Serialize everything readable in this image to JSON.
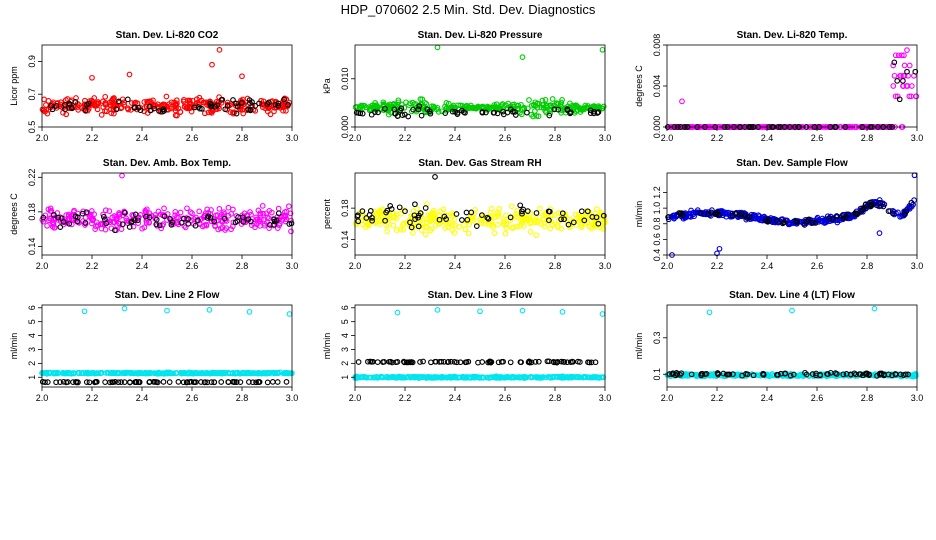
{
  "figure_title": "HDP_070602  2.5 Min. Std. Dev. Diagnostics",
  "chart_data": [
    {
      "type": "scatter",
      "title": "Stan. Dev. Li-820 CO2",
      "ylabel": "Licor ppm",
      "xlim": [
        2.0,
        3.0
      ],
      "ylim": [
        0.5,
        1.0
      ],
      "xticks": [
        "2.0",
        "2.2",
        "2.4",
        "2.6",
        "2.8",
        "3.0"
      ],
      "yticks": [
        "0.5",
        "0.7",
        "0.9"
      ],
      "series": [
        {
          "name": "red",
          "color": "#ff0000",
          "pattern": "noisy",
          "n": 300,
          "base": 0.63,
          "spread": 0.07,
          "sparse": [
            [
              2.2,
              0.8
            ],
            [
              2.35,
              0.82
            ],
            [
              2.68,
              0.88
            ],
            [
              2.71,
              0.97
            ],
            [
              2.8,
              0.81
            ]
          ]
        },
        {
          "name": "black",
          "color": "#000000",
          "pattern": "noisy",
          "n": 60,
          "base": 0.63,
          "spread": 0.06
        }
      ]
    },
    {
      "type": "scatter",
      "title": "Stan. Dev. Li-820 Pressure",
      "ylabel": "kPa",
      "xlim": [
        2.0,
        3.0
      ],
      "ylim": [
        0.0,
        0.017
      ],
      "xticks": [
        "2.0",
        "2.2",
        "2.4",
        "2.6",
        "2.8",
        "3.0"
      ],
      "yticks": [
        "0.000",
        "0.010"
      ],
      "series": [
        {
          "name": "green",
          "color": "#00cc00",
          "pattern": "band",
          "n": 320,
          "base": 0.004,
          "spread": 0.0025,
          "sparse": [
            [
              2.33,
              0.0165
            ],
            [
              2.67,
              0.0145
            ],
            [
              2.99,
              0.016
            ]
          ]
        },
        {
          "name": "black",
          "color": "#000000",
          "pattern": "band",
          "n": 60,
          "base": 0.003,
          "spread": 0.002
        }
      ]
    },
    {
      "type": "scatter",
      "title": "Stan. Dev. Li-820 Temp.",
      "ylabel": "degrees C",
      "xlim": [
        2.0,
        3.0
      ],
      "ylim": [
        0.0,
        0.008
      ],
      "xticks": [
        "2.0",
        "2.2",
        "2.4",
        "2.6",
        "2.8",
        "3.0"
      ],
      "yticks": [
        "0.000",
        "0.004",
        "0.008"
      ],
      "series": [
        {
          "name": "magenta",
          "color": "#ff00ff",
          "pattern": "steps",
          "n": 260,
          "base": 0.0,
          "spread": 0.0,
          "sparse": [
            [
              2.06,
              0.0025
            ],
            [
              2.95,
              0.0082
            ],
            [
              2.96,
              0.0075
            ]
          ]
        },
        {
          "name": "black",
          "color": "#000000",
          "pattern": "steps",
          "n": 60,
          "base": 0.0,
          "spread": 0.0
        }
      ]
    },
    {
      "type": "scatter",
      "title": "Stan. Dev. Amb. Box Temp.",
      "ylabel": "degrees C",
      "xlim": [
        2.0,
        3.0
      ],
      "ylim": [
        0.13,
        0.225
      ],
      "xticks": [
        "2.0",
        "2.2",
        "2.4",
        "2.6",
        "2.8",
        "3.0"
      ],
      "yticks": [
        "0.14",
        "0.18",
        "0.22"
      ],
      "series": [
        {
          "name": "magenta",
          "color": "#ff00ff",
          "pattern": "noisy",
          "n": 300,
          "base": 0.172,
          "spread": 0.018,
          "sparse": [
            [
              2.32,
              0.222
            ]
          ]
        },
        {
          "name": "black",
          "color": "#000000",
          "pattern": "noisy",
          "n": 60,
          "base": 0.17,
          "spread": 0.016
        }
      ]
    },
    {
      "type": "scatter",
      "title": "Stan. Dev. Gas Stream RH",
      "ylabel": "percent",
      "xlim": [
        2.0,
        3.0
      ],
      "ylim": [
        0.12,
        0.225
      ],
      "xticks": [
        "2.0",
        "2.2",
        "2.4",
        "2.6",
        "2.8",
        "3.0"
      ],
      "yticks": [
        "0.14",
        "0.18"
      ],
      "series": [
        {
          "name": "yellow",
          "color": "#ffff00",
          "pattern": "noisy",
          "n": 300,
          "base": 0.165,
          "spread": 0.022
        },
        {
          "name": "black",
          "color": "#000000",
          "pattern": "noisy",
          "n": 60,
          "base": 0.17,
          "spread": 0.02,
          "sparse": [
            [
              2.32,
              0.22
            ]
          ]
        }
      ]
    },
    {
      "type": "scatter",
      "title": "Stan. Dev. Sample Flow",
      "ylabel": "ml/min",
      "xlim": [
        2.0,
        3.0
      ],
      "ylim": [
        0.4,
        1.45
      ],
      "xticks": [
        "2.0",
        "2.2",
        "2.4",
        "2.6",
        "2.8",
        "3.0"
      ],
      "yticks": [
        "0.4",
        "0.6",
        "0.8",
        "1.0",
        "1.2"
      ],
      "series": [
        {
          "name": "blue",
          "color": "#0000dd",
          "pattern": "wave",
          "n": 360,
          "base": 0.88,
          "spread": 0.06,
          "sparse": [
            [
              2.02,
              0.4
            ],
            [
              2.2,
              0.42
            ],
            [
              2.21,
              0.48
            ],
            [
              2.85,
              0.68
            ],
            [
              2.99,
              1.42
            ]
          ]
        },
        {
          "name": "black",
          "color": "#000000",
          "pattern": "wave",
          "n": 60,
          "base": 0.88,
          "spread": 0.05
        }
      ]
    },
    {
      "type": "scatter",
      "title": "Stan. Dev. Line 2 Flow",
      "ylabel": "ml/min",
      "xlim": [
        2.0,
        3.0
      ],
      "ylim": [
        0.3,
        6.2
      ],
      "xticks": [
        "2.0",
        "2.2",
        "2.4",
        "2.6",
        "2.8",
        "3.0"
      ],
      "yticks": [
        "1",
        "2",
        "3",
        "4",
        "5",
        "6"
      ],
      "series": [
        {
          "name": "cyan",
          "color": "#00e5ee",
          "pattern": "flat",
          "n": 340,
          "base": 1.3,
          "spread": 0.06,
          "sparse": [
            [
              2.17,
              5.75
            ],
            [
              2.33,
              5.95
            ],
            [
              2.5,
              5.8
            ],
            [
              2.67,
              5.85
            ],
            [
              2.83,
              5.7
            ],
            [
              2.99,
              5.55
            ]
          ]
        },
        {
          "name": "black",
          "color": "#000000",
          "pattern": "flat",
          "n": 80,
          "base": 0.65,
          "spread": 0.04
        }
      ]
    },
    {
      "type": "scatter",
      "title": "Stan. Dev. Line 3 Flow",
      "ylabel": "ml/min",
      "xlim": [
        2.0,
        3.0
      ],
      "ylim": [
        0.3,
        6.2
      ],
      "xticks": [
        "2.0",
        "2.2",
        "2.4",
        "2.6",
        "2.8",
        "3.0"
      ],
      "yticks": [
        "1",
        "2",
        "3",
        "4",
        "5",
        "6"
      ],
      "series": [
        {
          "name": "cyan",
          "color": "#00e5ee",
          "pattern": "flat",
          "n": 340,
          "base": 1.0,
          "spread": 0.08,
          "sparse": [
            [
              2.17,
              5.65
            ],
            [
              2.33,
              5.85
            ],
            [
              2.5,
              5.75
            ],
            [
              2.67,
              5.8
            ],
            [
              2.83,
              5.7
            ],
            [
              2.99,
              5.55
            ]
          ]
        },
        {
          "name": "black",
          "color": "#000000",
          "pattern": "flat",
          "n": 80,
          "base": 2.1,
          "spread": 0.08
        }
      ]
    },
    {
      "type": "scatter",
      "title": "Stan. Dev. Line 4 (LT) Flow",
      "ylabel": "ml/min",
      "xlim": [
        2.0,
        3.0
      ],
      "ylim": [
        0.03,
        0.48
      ],
      "xticks": [
        "2.0",
        "2.2",
        "2.4",
        "2.6",
        "2.8",
        "3.0"
      ],
      "yticks": [
        "0.1",
        "0.3"
      ],
      "series": [
        {
          "name": "cyan",
          "color": "#00e5ee",
          "pattern": "flat",
          "n": 340,
          "base": 0.095,
          "spread": 0.01,
          "sparse": [
            [
              2.17,
              0.44
            ],
            [
              2.5,
              0.45
            ],
            [
              2.83,
              0.46
            ]
          ]
        },
        {
          "name": "black",
          "color": "#000000",
          "pattern": "flat",
          "n": 80,
          "base": 0.1,
          "spread": 0.012
        }
      ]
    }
  ]
}
